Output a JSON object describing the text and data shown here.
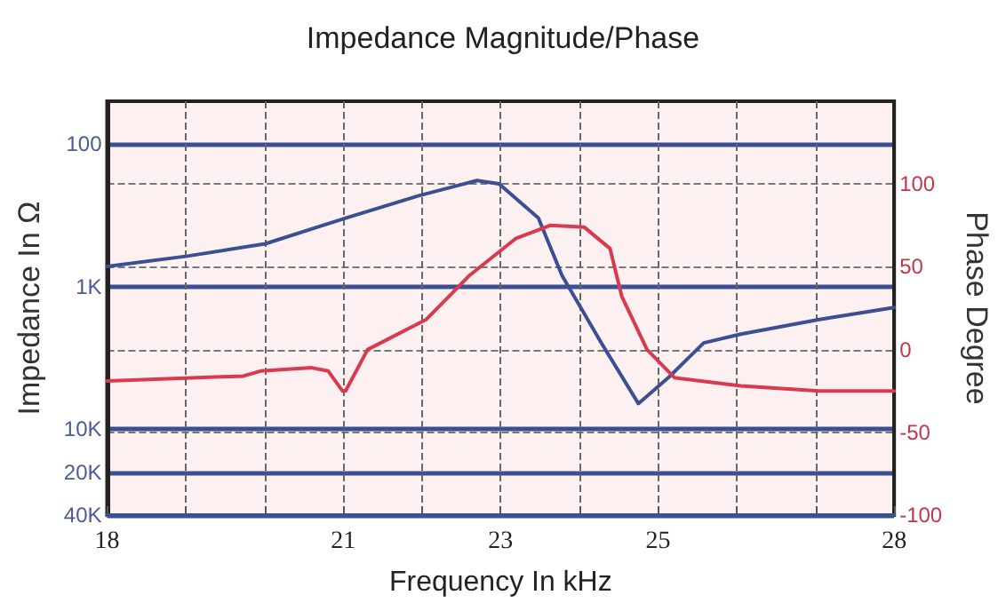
{
  "chart_data": {
    "type": "line",
    "title": "Impedance Magnitude/Phase",
    "xlabel": "Frequency In kHz",
    "ylabel": "Impedance In Ω",
    "y2label": "Phase Degree",
    "xlim": [
      18,
      28
    ],
    "xticks": [
      18,
      {
        "value": 19,
        "label": null
      },
      {
        "value": 20,
        "label": null
      },
      21,
      {
        "value": 22,
        "label": null
      },
      23,
      {
        "value": 24,
        "label": null
      },
      25,
      {
        "value": 26,
        "label": null
      },
      {
        "value": 27,
        "label": null
      },
      28
    ],
    "ylim": [
      40000,
      50
    ],
    "yticks": [
      100,
      {
        "value": 1000,
        "label": "1K"
      },
      {
        "value": 10000,
        "label": "10K"
      },
      {
        "value": 20000,
        "label": "20K"
      },
      {
        "value": 40000,
        "label": "40K"
      }
    ],
    "log": "y",
    "y2lim": [
      -100,
      150
    ],
    "y2ticks": [
      -100,
      -50,
      0,
      50,
      100
    ],
    "grid": true,
    "marker": "none",
    "line_style": "solid",
    "series": [
      {
        "color": "#3d4f93",
        "x": [
          18,
          19.02,
          20.01,
          21.03,
          21.96,
          22.7,
          22.98,
          23.48,
          23.78,
          24.28,
          24.75,
          25.14,
          25.58,
          26.05,
          27.05,
          28
        ],
        "values": [
          720,
          610,
          500,
          330,
          230,
          180,
          190,
          330,
          835,
          2480,
          6600,
          4300,
          2480,
          2150,
          1700,
          1400
        ]
      },
      {
        "color": "#d93a4f",
        "axis": "y2",
        "x": [
          18,
          19.73,
          19.95,
          20.6,
          20.81,
          20.99,
          21.03,
          21.31,
          22.05,
          22.61,
          23.19,
          23.63,
          24.06,
          24.39,
          24.54,
          24.86,
          25.21,
          26.05,
          27.05,
          28
        ],
        "values": [
          -19,
          -16,
          -13,
          -11,
          -13,
          -25,
          -25,
          0,
          18,
          45,
          67,
          75,
          74,
          61,
          32,
          0,
          -17,
          -22,
          -25,
          -25
        ]
      }
    ]
  }
}
